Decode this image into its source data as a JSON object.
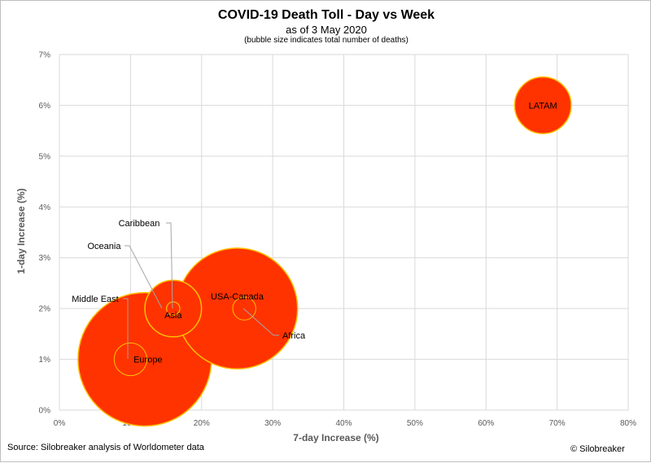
{
  "chart_data": {
    "type": "scatter",
    "title": "COVID-19 Death Toll - Day vs Week",
    "subtitle": "as of 3 May 2020",
    "note": "(bubble size indicates total number of deaths)",
    "xlabel": "7-day Increase (%)",
    "ylabel": "1-day Increase (%)",
    "xlim": [
      0,
      80
    ],
    "ylim": [
      0,
      7
    ],
    "x_ticks": [
      "0%",
      "10%",
      "20%",
      "30%",
      "40%",
      "50%",
      "60%",
      "70%",
      "80%"
    ],
    "y_ticks": [
      "0%",
      "1%",
      "2%",
      "3%",
      "4%",
      "5%",
      "6%",
      "7%"
    ],
    "grid": true,
    "colors": {
      "fill": "#ff3300",
      "stroke": "#ffc000",
      "grid": "#d9d9d9",
      "leader": "#a6a6a6"
    },
    "points": [
      {
        "label": "LATAM",
        "x": 68,
        "y": 6,
        "size": 18
      },
      {
        "label": "USA-Canada",
        "x": 25,
        "y": 2,
        "size": 82
      },
      {
        "label": "Asia",
        "x": 16,
        "y": 2,
        "size": 18
      },
      {
        "label": "Europe",
        "x": 12,
        "y": 1,
        "size": 100
      },
      {
        "label": "Middle East",
        "x": 10,
        "y": 1,
        "size": 6
      },
      {
        "label": "Africa",
        "x": 26,
        "y": 2,
        "size": 3
      },
      {
        "label": "Oceania",
        "x": 16,
        "y": 2,
        "size": 1
      },
      {
        "label": "Caribbean",
        "x": 16,
        "y": 2,
        "size": 1
      }
    ]
  },
  "footer": {
    "source": "Source: Silobreaker analysis of Worldometer data",
    "copyright": "© Silobreaker"
  }
}
